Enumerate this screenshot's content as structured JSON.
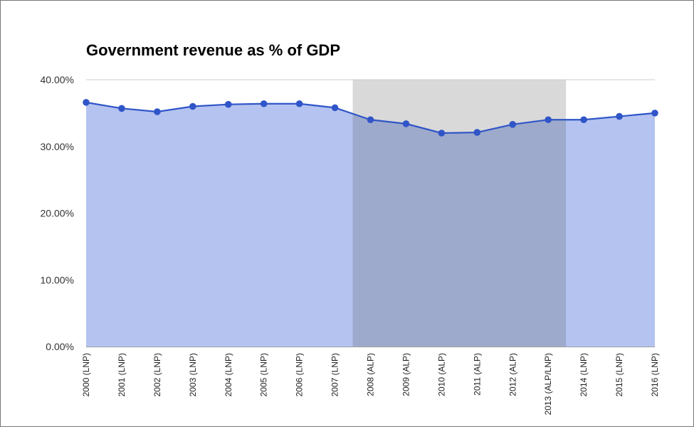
{
  "chart_data": {
    "type": "area",
    "title": "Government revenue as % of GDP",
    "xlabel": "",
    "ylabel": "",
    "categories": [
      "2000 (LNP)",
      "2001 (LNP)",
      "2002 (LNP)",
      "2003 (LNP)",
      "2004 (LNP)",
      "2005 (LNP)",
      "2006 (LNP)",
      "2007 (LNP)",
      "2008 (ALP)",
      "2009 (ALP)",
      "2010 (ALP)",
      "2011 (ALP)",
      "2012 (ALP)",
      "2013 (ALP/LNP)",
      "2014 (LNP)",
      "2015 (LNP)",
      "2016 (LNP)"
    ],
    "values": [
      36.6,
      35.7,
      35.2,
      36.0,
      36.3,
      36.4,
      36.4,
      35.8,
      34.0,
      33.4,
      32.0,
      32.1,
      33.3,
      34.0,
      34.0,
      34.5,
      35.0
    ],
    "ylim": [
      0,
      40
    ],
    "yticks": [
      "0.00%",
      "10.00%",
      "20.00%",
      "30.00%",
      "40.00%"
    ],
    "ytick_values": [
      0,
      10,
      20,
      30,
      40
    ],
    "highlight_range": [
      "2008 (ALP)",
      "2013 (ALP/LNP)"
    ],
    "grid": true,
    "colors": {
      "line": "#2f55c8",
      "fill": "#b4c3f0",
      "highlight": "#d9d9d9",
      "highlight_overlap": "#9eaacb",
      "grid": "#cccccc"
    }
  }
}
